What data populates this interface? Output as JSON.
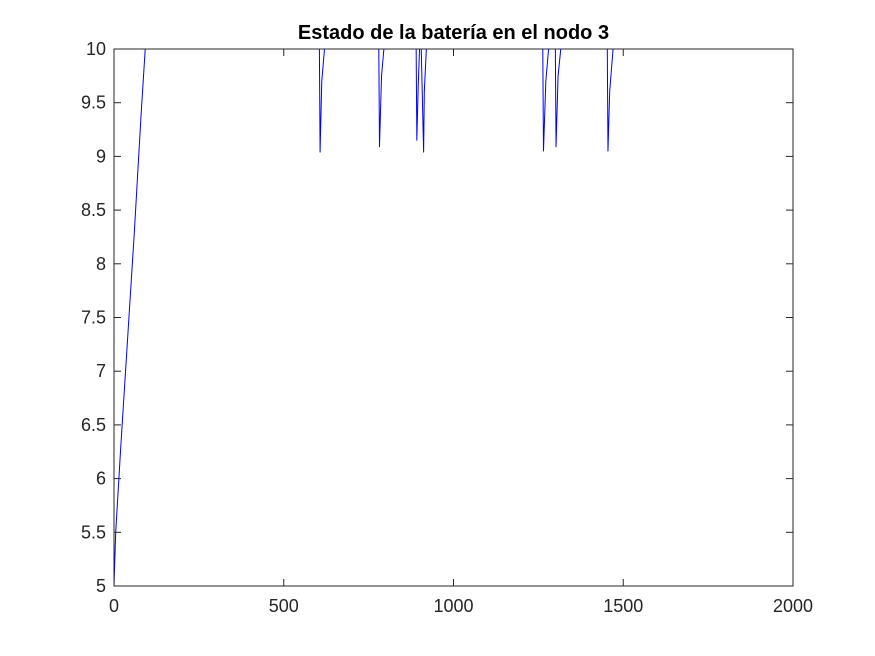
{
  "chart_data": {
    "type": "line",
    "title": "Estado de la batería en el nodo 3",
    "xlabel": "",
    "ylabel": "",
    "xlim": [
      0,
      2000
    ],
    "ylim": [
      5,
      10
    ],
    "xticks": [
      0,
      500,
      1000,
      1500,
      2000
    ],
    "xtick_labels": [
      "0",
      "500",
      "1000",
      "1500",
      "2000"
    ],
    "yticks": [
      5,
      5.5,
      6,
      6.5,
      7,
      7.5,
      8,
      8.5,
      9,
      9.5,
      10
    ],
    "ytick_labels": [
      "5",
      "5.5",
      "6",
      "6.5",
      "7",
      "7.5",
      "8",
      "8.5",
      "9",
      "9.5",
      "10"
    ],
    "grid": false,
    "legend": "none",
    "series": [
      {
        "color": "#0000ff",
        "x": [
          0,
          5,
          20,
          40,
          60,
          80,
          92,
          605,
          607,
          612,
          620,
          780,
          782,
          788,
          795,
          890,
          892,
          896,
          900,
          905,
          912,
          914,
          920,
          928,
          1263,
          1265,
          1272,
          1280,
          1288,
          1300,
          1302,
          1308,
          1316,
          1453,
          1455,
          1460,
          1470,
          2000
        ],
        "y": [
          5,
          5.5,
          6.3,
          7.3,
          8.3,
          9.4,
          10,
          10,
          9.04,
          9.7,
          10,
          10,
          9.09,
          9.75,
          10,
          10,
          9.15,
          9.65,
          10,
          10,
          9.04,
          9.6,
          10,
          10,
          10,
          9.05,
          9.7,
          10,
          10,
          10,
          9.09,
          9.75,
          10,
          10,
          9.05,
          9.6,
          10,
          10
        ]
      }
    ]
  }
}
